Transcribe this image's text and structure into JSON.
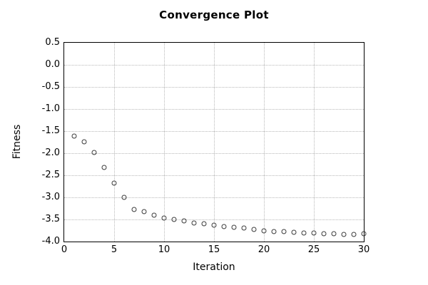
{
  "chart_data": {
    "type": "scatter",
    "title": "Convergence Plot",
    "xlabel": "Iteration",
    "ylabel": "Fitness",
    "xlim": [
      0,
      30
    ],
    "ylim": [
      -4.0,
      0.5
    ],
    "xticks": [
      0,
      5,
      10,
      15,
      20,
      25,
      30
    ],
    "xtick_labels": [
      "0",
      "5",
      "10",
      "15",
      "20",
      "25",
      "30"
    ],
    "yticks": [
      0.5,
      0.0,
      -0.5,
      -1.0,
      -1.5,
      -2.0,
      -2.5,
      -3.0,
      -3.5,
      -4.0
    ],
    "ytick_labels": [
      "0.5",
      "0.0",
      "-0.5",
      "-1.0",
      "-1.5",
      "-2.0",
      "-2.5",
      "-3.0",
      "-3.5",
      "-4.0"
    ],
    "grid": true,
    "legend": "none",
    "marker": "open-circle",
    "marker_color": "#3a3a3a",
    "grid_color": "#b9b9b9",
    "border_color": "#000000",
    "background_color": "#ffffff",
    "x": [
      1,
      2,
      3,
      4,
      5,
      6,
      7,
      8,
      9,
      10,
      11,
      12,
      13,
      14,
      15,
      16,
      17,
      18,
      19,
      20,
      21,
      22,
      23,
      24,
      25,
      26,
      27,
      28,
      29,
      30
    ],
    "y": [
      -1.61,
      -1.74,
      -1.98,
      -2.32,
      -2.68,
      -3.0,
      -3.28,
      -3.33,
      -3.4,
      -3.46,
      -3.5,
      -3.54,
      -3.58,
      -3.6,
      -3.63,
      -3.66,
      -3.68,
      -3.7,
      -3.73,
      -3.75,
      -3.77,
      -3.78,
      -3.79,
      -3.8,
      -3.81,
      -3.82,
      -3.83,
      -3.84,
      -3.84,
      -3.83
    ]
  }
}
